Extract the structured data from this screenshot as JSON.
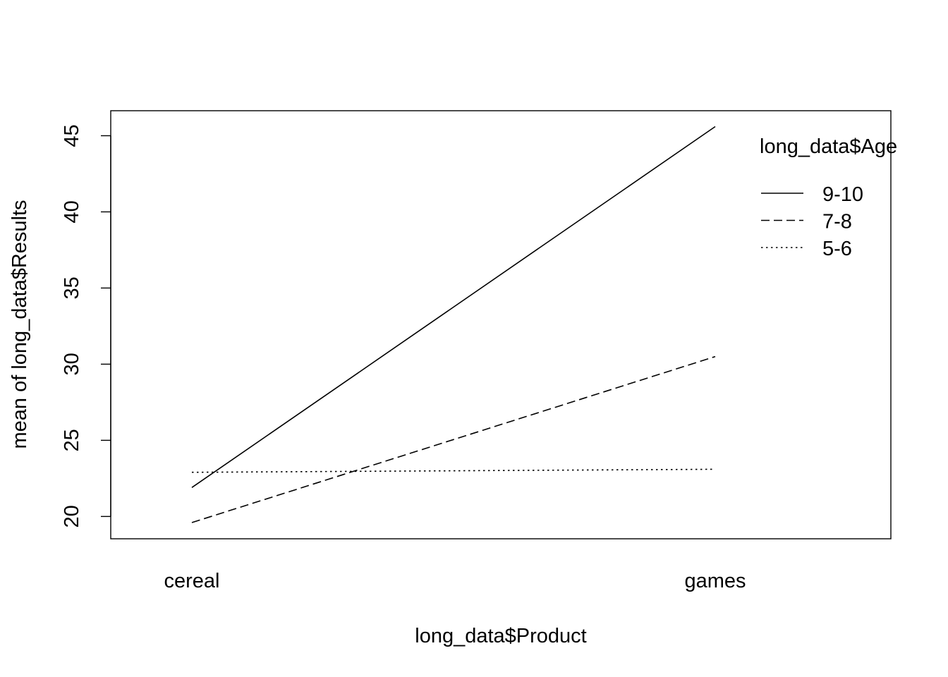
{
  "chart_data": {
    "type": "line",
    "title": "",
    "xlabel": "long_data$Product",
    "ylabel": "mean of  long_data$Results",
    "categories": [
      "cereal",
      "games"
    ],
    "ylim": [
      18.6,
      46.6
    ],
    "yticks": [
      20,
      25,
      30,
      35,
      40,
      45
    ],
    "grid": false,
    "legend": {
      "title": "long_data$Age",
      "placement": "top-right"
    },
    "series": [
      {
        "name": "9-10",
        "values": [
          21.9,
          45.6
        ],
        "linestyle": "solid",
        "color": "#000000"
      },
      {
        "name": "7-8",
        "values": [
          19.6,
          30.5
        ],
        "linestyle": "dashed",
        "color": "#000000"
      },
      {
        "name": "5-6",
        "values": [
          22.9,
          23.1
        ],
        "linestyle": "dotted",
        "color": "#000000"
      }
    ]
  }
}
